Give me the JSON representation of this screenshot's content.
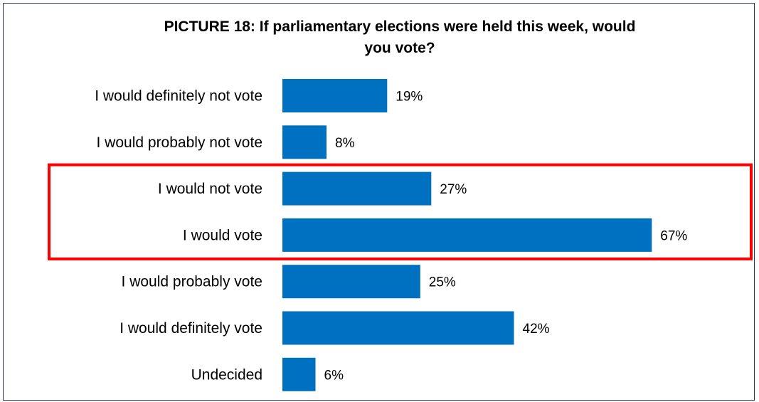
{
  "chart_data": {
    "type": "bar",
    "orientation": "horizontal",
    "title": "PICTURE 18: If parliamentary elections were held this week, would you vote?",
    "title_lines": [
      "PICTURE 18: If parliamentary elections were held this week, would",
      "you vote?"
    ],
    "categories": [
      "I would definitely not vote",
      "I would probably not vote",
      "I would not vote",
      "I would vote",
      "I would probably vote",
      "I would definitely vote",
      "Undecided"
    ],
    "values": [
      19,
      8,
      27,
      67,
      25,
      42,
      6
    ],
    "value_labels": [
      "19%",
      "8%",
      "27%",
      "67%",
      "25%",
      "42%",
      "6%"
    ],
    "unit": "%",
    "highlighted_categories": [
      "I would not vote",
      "I would vote"
    ],
    "grid": false,
    "legend": "none"
  },
  "colors": {
    "bar": "#0070c0",
    "highlight_box": "#ff0000",
    "frame": "#1f3864",
    "text": "#000000"
  }
}
